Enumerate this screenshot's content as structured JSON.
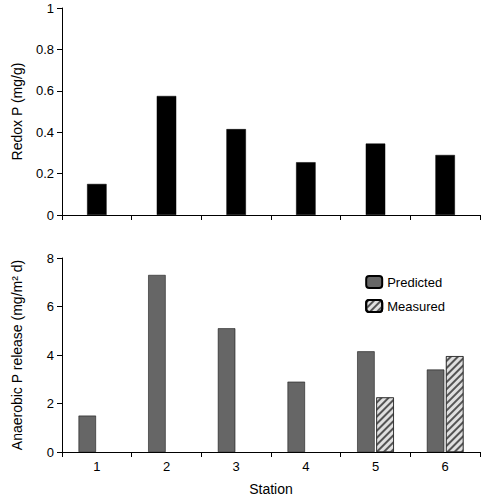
{
  "chart_data": [
    {
      "type": "bar",
      "y_label": "Redox P (mg/g)",
      "categories": [
        null,
        null,
        null,
        null,
        null,
        null
      ],
      "series": [
        {
          "name": "Redox P",
          "color": "#000000",
          "values": [
            0.15,
            0.575,
            0.415,
            0.255,
            0.345,
            0.29
          ]
        }
      ],
      "ylim": [
        0,
        1
      ],
      "yticks": [
        0,
        0.2,
        0.4,
        0.6,
        0.8,
        1
      ],
      "grid": false,
      "tick_labels": "y"
    },
    {
      "type": "bar",
      "x_label": "Station",
      "y_label": "Anaerobic P release (mg/m² d)",
      "categories": [
        "1",
        "2",
        "3",
        "4",
        "5",
        "6"
      ],
      "series": [
        {
          "name": "Predicted",
          "color": "#666666",
          "marker": "solid",
          "values": [
            1.5,
            7.3,
            5.1,
            2.9,
            4.15,
            3.4
          ]
        },
        {
          "name": "Measured",
          "color": "#e0e0e0",
          "marker": "hatch",
          "values": [
            null,
            null,
            null,
            null,
            2.25,
            3.95
          ]
        }
      ],
      "ylim": [
        0,
        8
      ],
      "yticks": [
        0,
        2,
        4,
        6,
        8
      ],
      "grid": false,
      "legend": "upper right"
    }
  ]
}
